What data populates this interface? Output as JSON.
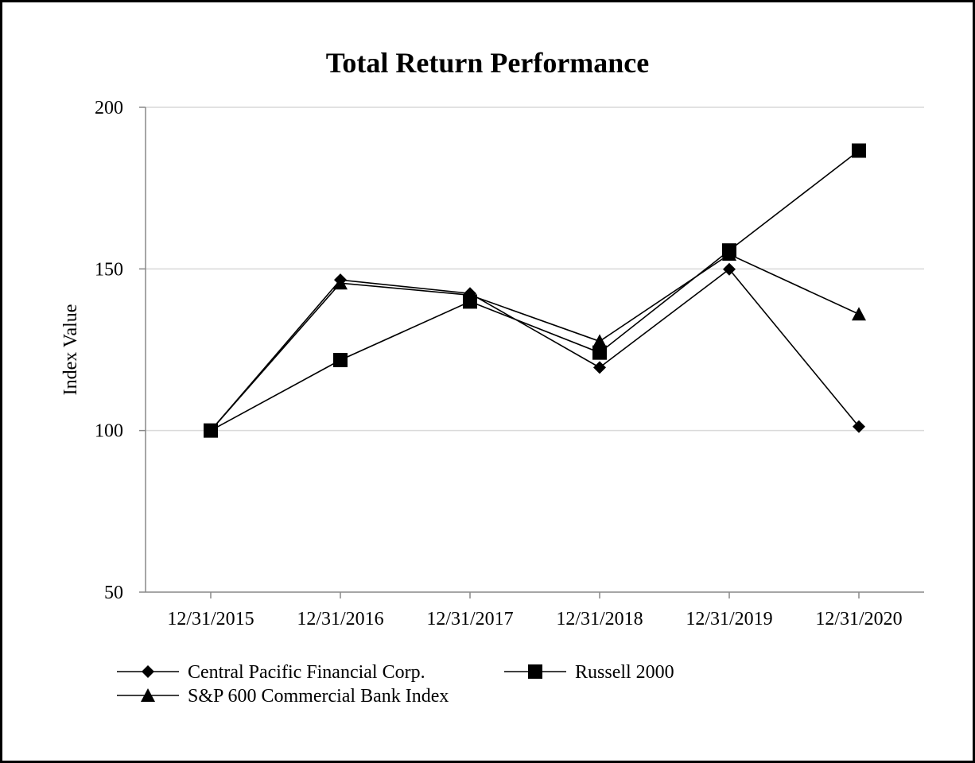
{
  "chart_data": {
    "type": "line",
    "title": "Total Return Performance",
    "xlabel": "",
    "ylabel": "Index Value",
    "categories": [
      "12/31/2015",
      "12/31/2016",
      "12/31/2017",
      "12/31/2018",
      "12/31/2019",
      "12/31/2020"
    ],
    "yticks": [
      "50",
      "100",
      "150",
      "200"
    ],
    "ylim": [
      50,
      200
    ],
    "grid": "horizontal",
    "legend_placement": "bottom",
    "series": [
      {
        "name": "Central Pacific Financial Corp.",
        "marker": "diamond",
        "values": [
          100,
          146.6,
          142.4,
          119.5,
          149.9,
          101.2
        ]
      },
      {
        "name": "Russell 2000",
        "marker": "square",
        "values": [
          100,
          121.8,
          139.9,
          124.1,
          155.7,
          186.6
        ]
      },
      {
        "name": "S&P 600 Commercial Bank Index",
        "marker": "triangle",
        "values": [
          100,
          145.6,
          141.9,
          127.6,
          154.5,
          136.0
        ]
      }
    ]
  }
}
